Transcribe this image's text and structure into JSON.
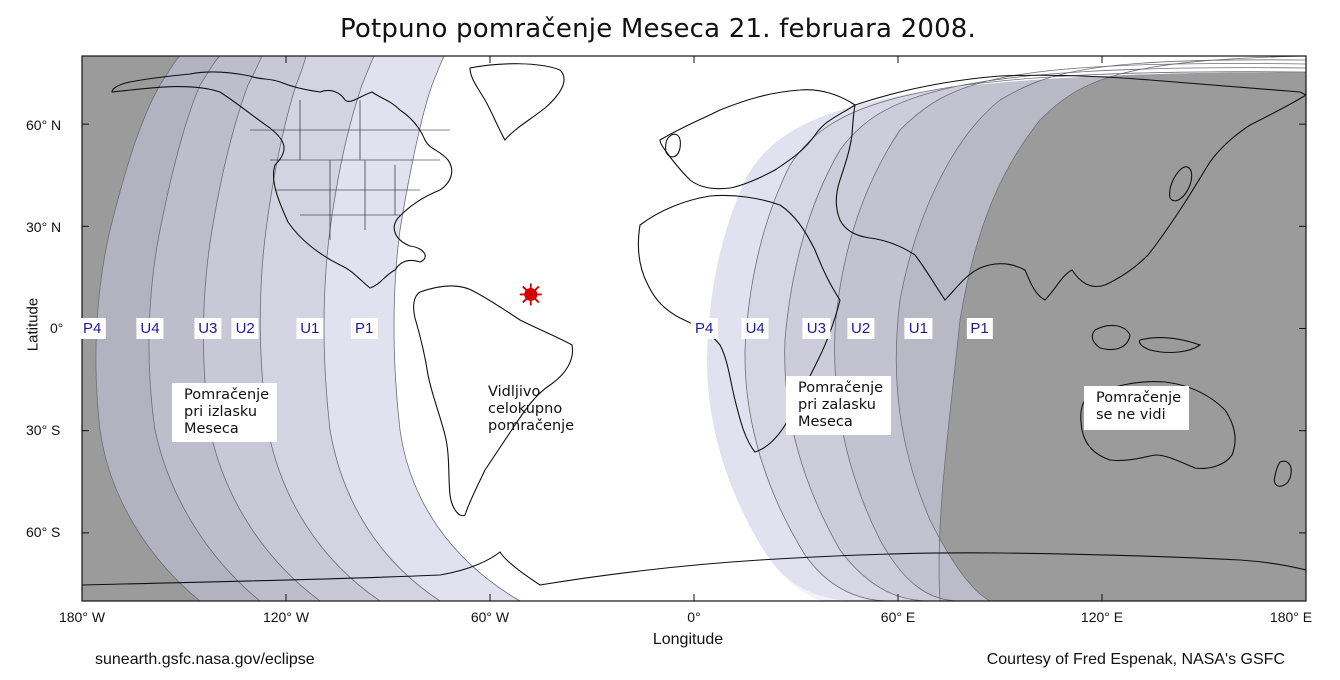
{
  "title": "Potpuno pomračenje Meseca 21. februara 2008.",
  "axes": {
    "xlabel": "Longitude",
    "ylabel": "Latitude",
    "lat_ticks": [
      "60° N",
      "30° N",
      "0°",
      "30° S",
      "60° S"
    ],
    "lon_ticks": [
      "180° W",
      "120° W",
      "60° W",
      "0°",
      "60° E",
      "120° E",
      "180° E"
    ]
  },
  "contacts_west": [
    "P4",
    "U4",
    "U3",
    "U2",
    "U1",
    "P1"
  ],
  "contacts_east": [
    "P4",
    "U4",
    "U3",
    "U2",
    "U1",
    "P1"
  ],
  "zones": {
    "moonrise": [
      "Pomračenje",
      "pri izlasku",
      "Meseca"
    ],
    "visible": [
      "Vidljivo",
      "celokupno",
      "pomračenje"
    ],
    "moonset": [
      "Pomračenje",
      "pri zalasku",
      "Meseca"
    ],
    "not_visible": [
      "Pomračenje",
      "se ne vidi"
    ]
  },
  "footer": {
    "left": "sunearth.gsfc.nasa.gov/eclipse",
    "right": "Courtesy of Fred Espenak, NASA's GSFC"
  },
  "colors": {
    "not_visible": "#9b9b9b",
    "shade_bands": [
      "#b2b2c0",
      "#bdbdcb",
      "#c8c8d6",
      "#d3d3e1",
      "#e1e1ef",
      "#f0f0f8"
    ],
    "visible": "#ffffff",
    "contact_text": "#1a1a9e",
    "sublunar_marker": "#d40000"
  },
  "map_data": {
    "projection": "equirectangular",
    "lon_range": [
      -180,
      180
    ],
    "lat_range": [
      -80,
      80
    ],
    "sublunar_point": {
      "lon": -48,
      "lat": 10
    },
    "contact_lons_west": [
      -177,
      -160,
      -143,
      -132,
      -113,
      -97
    ],
    "contact_lons_east": [
      3,
      18,
      36,
      49,
      66,
      84
    ]
  }
}
